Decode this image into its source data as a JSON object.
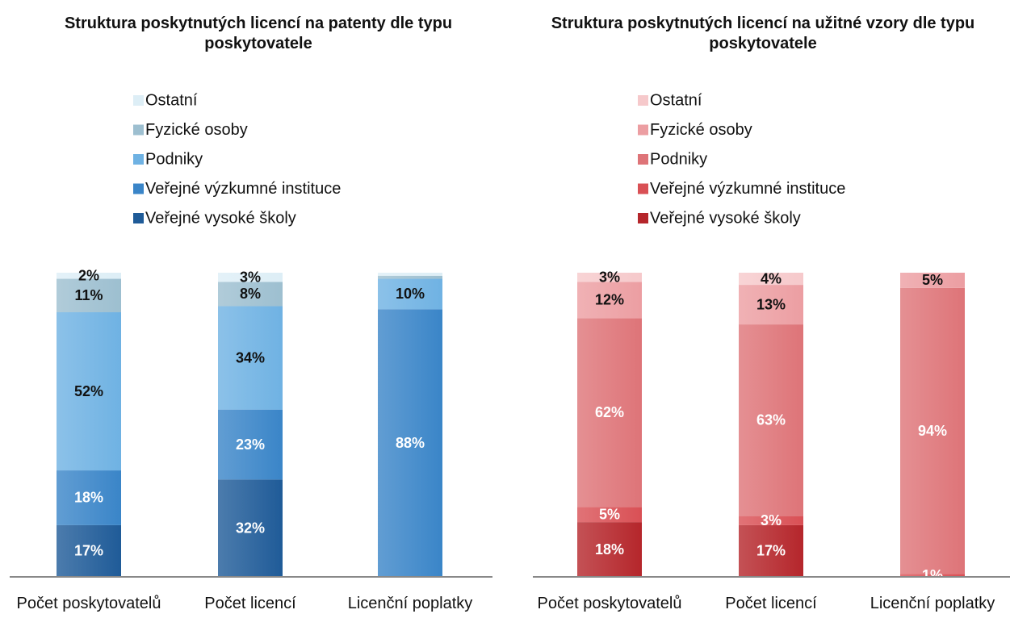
{
  "chart_data": [
    {
      "type": "bar",
      "stacked": true,
      "title": "Struktura poskytnutých licencí na patenty dle typu poskytovatele",
      "categories": [
        "Počet poskytovatelů",
        "Počet licencí",
        "Licenční poplatky"
      ],
      "ylim": [
        0,
        100
      ],
      "series": [
        {
          "name": "Veřejné vysoké školy",
          "color": "#1f5b98",
          "values": [
            17,
            32,
            0
          ],
          "value_labels": [
            "17%",
            "32%",
            null
          ]
        },
        {
          "name": "Veřejné výzkumné instituce",
          "color": "#3a85c8",
          "values": [
            18,
            23,
            88
          ],
          "value_labels": [
            "18%",
            "23%",
            "88%"
          ]
        },
        {
          "name": "Podniky",
          "color": "#6fb2e3",
          "values": [
            52,
            34,
            10
          ],
          "value_labels": [
            "52%",
            "34%",
            "10%"
          ]
        },
        {
          "name": "Fyzické osoby",
          "color": "#9dbfd0",
          "values": [
            11,
            8,
            1
          ],
          "value_labels": [
            "11%",
            "8%",
            null
          ]
        },
        {
          "name": "Ostatní",
          "color": "#ddeef6",
          "values": [
            2,
            3,
            1
          ],
          "value_labels": [
            "2%",
            "3%",
            null
          ]
        }
      ]
    },
    {
      "type": "bar",
      "stacked": true,
      "title": "Struktura poskytnutých licencí na užitné vzory dle typu poskytovatele",
      "categories": [
        "Počet poskytovatelů",
        "Počet licencí",
        "Licenční poplatky"
      ],
      "ylim": [
        0,
        100
      ],
      "series": [
        {
          "name": "Veřejné vysoké školy",
          "color": "#b5262b",
          "values": [
            18,
            17,
            0
          ],
          "value_labels": [
            "18%",
            "17%",
            null
          ]
        },
        {
          "name": "Veřejné výzkumné instituce",
          "color": "#d95055",
          "values": [
            5,
            3,
            1
          ],
          "value_labels": [
            "5%",
            "3%",
            "1%"
          ]
        },
        {
          "name": "Podniky",
          "color": "#de7478",
          "values": [
            62,
            63,
            94
          ],
          "value_labels": [
            "62%",
            "63%",
            "94%"
          ]
        },
        {
          "name": "Fyzické osoby",
          "color": "#ec9ea2",
          "values": [
            12,
            13,
            5
          ],
          "value_labels": [
            "12%",
            "13%",
            "5%"
          ]
        },
        {
          "name": "Ostatní",
          "color": "#f6c9cb",
          "values": [
            3,
            4,
            0
          ],
          "value_labels": [
            "3%",
            "4%",
            null
          ]
        }
      ]
    }
  ]
}
